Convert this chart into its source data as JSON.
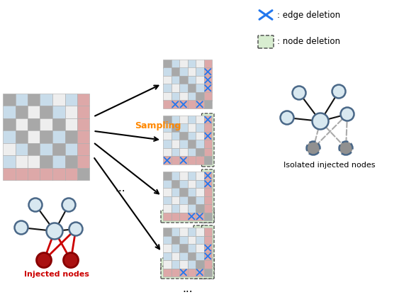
{
  "legend_edge_text": ": edge deletion",
  "legend_node_text": ": node deletion",
  "injected_label": "Injected nodes",
  "isolated_label": "Isolated injected nodes",
  "sampling_text": "Sampling",
  "dots": "...",
  "node_color_normal_light": "#d8e8f0",
  "node_color_normal_dark": "#7a9ab8",
  "node_edge_color": "#4a6888",
  "node_color_injected": "#aa1111",
  "node_color_isolated": "#909090",
  "node_edge_isolated": "#4a6888",
  "edge_color_normal": "#111111",
  "edge_color_injected": "#cc0000",
  "edge_color_dashed": "#aaaaaa",
  "green_fill": "#d8edd0",
  "green_edge": "#8ab87a",
  "dashed_box_color": "#444444",
  "blue_x_color": "#2277ee",
  "orange_sampling": "#ff8800",
  "gc": "#a8a8a8",
  "bc": "#c8dcea",
  "rc": "#dda8a8",
  "wc": "#eeeeee"
}
